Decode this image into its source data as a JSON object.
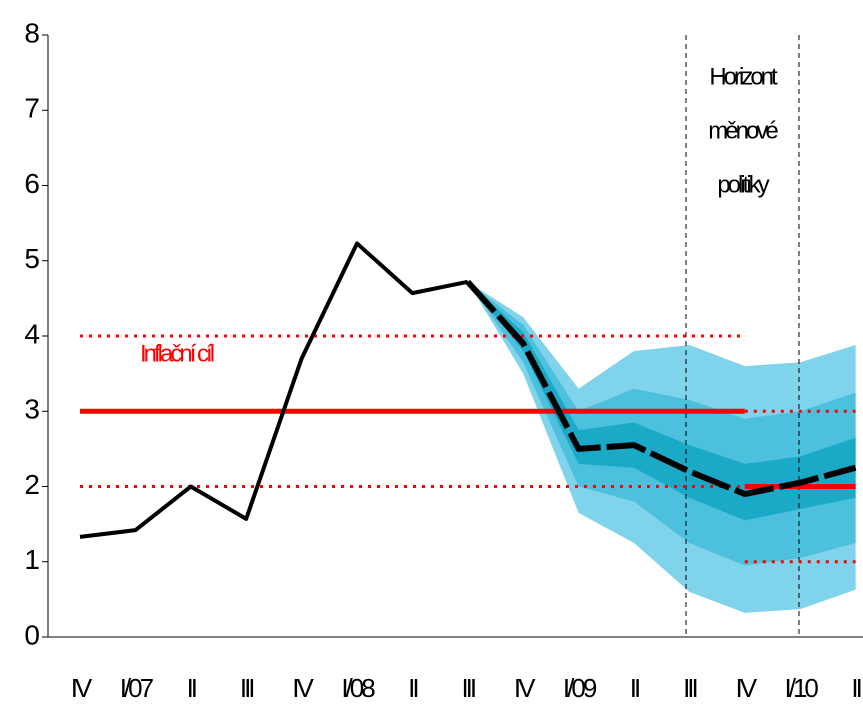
{
  "chart_data": {
    "type": "fan",
    "categories": [
      "IV",
      "I/07",
      "II",
      "III",
      "IV",
      "I/08",
      "II",
      "III",
      "IV",
      "I/09",
      "II",
      "III",
      "IV",
      "I/10",
      "II"
    ],
    "ylim": [
      0,
      8
    ],
    "yticks": [
      0,
      1,
      2,
      3,
      4,
      5,
      6,
      7,
      8
    ],
    "series": [
      {
        "color": "#000000",
        "style": "solid",
        "values": [
          1.33,
          1.42,
          2.0,
          1.57,
          3.7,
          5.23,
          4.57,
          4.72,
          null,
          null,
          null,
          null,
          null,
          null,
          null
        ]
      },
      {
        "color": "#000000",
        "style": "dashed",
        "values": [
          null,
          null,
          null,
          null,
          null,
          null,
          null,
          4.72,
          3.9,
          2.5,
          2.55,
          2.2,
          1.9,
          2.05,
          2.25
        ]
      }
    ],
    "bands": [
      {
        "color": "#7fd3ea",
        "upper": [
          null,
          null,
          null,
          null,
          null,
          null,
          null,
          4.72,
          4.25,
          3.3,
          3.8,
          3.88,
          3.6,
          3.65,
          3.88
        ],
        "lower": [
          null,
          null,
          null,
          null,
          null,
          null,
          null,
          4.72,
          3.5,
          1.65,
          1.25,
          0.6,
          0.32,
          0.37,
          0.63
        ]
      },
      {
        "color": "#4cc0dc",
        "upper": [
          null,
          null,
          null,
          null,
          null,
          null,
          null,
          4.72,
          4.15,
          3.0,
          3.3,
          3.15,
          2.9,
          3.0,
          3.25
        ],
        "lower": [
          null,
          null,
          null,
          null,
          null,
          null,
          null,
          4.72,
          3.65,
          2.0,
          1.8,
          1.25,
          0.95,
          1.05,
          1.25
        ]
      },
      {
        "color": "#1aa9c6",
        "upper": [
          null,
          null,
          null,
          null,
          null,
          null,
          null,
          4.72,
          4.05,
          2.75,
          2.85,
          2.55,
          2.3,
          2.4,
          2.65
        ],
        "lower": [
          null,
          null,
          null,
          null,
          null,
          null,
          null,
          4.72,
          3.8,
          2.3,
          2.25,
          1.85,
          1.55,
          1.7,
          1.85
        ]
      }
    ],
    "targets": [
      {
        "value": 3,
        "start": 0,
        "end": 12,
        "style": "solid",
        "color": "#ff0000"
      },
      {
        "value": 4,
        "start": 0,
        "end": 12,
        "style": "dotted",
        "color": "#ff0000"
      },
      {
        "value": 2,
        "start": 0,
        "end": 12,
        "style": "dotted",
        "color": "#ff0000"
      },
      {
        "value": 2,
        "start": 12,
        "end": 14,
        "style": "solid",
        "color": "#ff0000"
      },
      {
        "value": 3,
        "start": 12,
        "end": 14,
        "style": "dotted",
        "color": "#ff0000"
      },
      {
        "value": 1,
        "start": 12,
        "end": 14,
        "style": "dotted",
        "color": "#ff0000"
      }
    ],
    "annotations": [
      "Inflační cíl",
      "Horizont",
      "měnové",
      "politiky"
    ]
  }
}
